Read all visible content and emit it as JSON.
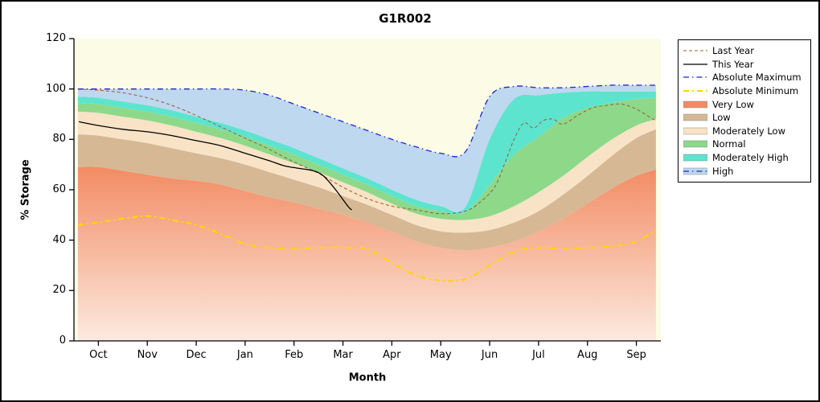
{
  "colors": {
    "plot_bg": "#FCFCE6",
    "axis": "#000000",
    "very_low_top": "#F28B63",
    "very_low_bottom": "#FCEADF",
    "low": "#D6B894",
    "moderately_low": "#F8E3C6",
    "normal": "#8ED88A",
    "moderately_high": "#5CE4CE",
    "high": "#BDD8EF",
    "last_year_line": "#9A5D2E",
    "this_year_line": "#000000",
    "abs_max_line": "#2222CC",
    "abs_min_line": "#FFD700"
  },
  "chart_data": {
    "type": "area+line",
    "title": "G1R002",
    "xlabel": "Month",
    "ylabel": "% Storage",
    "ylim": [
      0,
      120
    ],
    "y_ticks": [
      0,
      20,
      40,
      60,
      80,
      100,
      120
    ],
    "months": [
      "Oct",
      "Nov",
      "Dec",
      "Jan",
      "Feb",
      "Mar",
      "Apr",
      "May",
      "Jun",
      "Jul",
      "Aug",
      "Sep"
    ],
    "x_range_months": [
      0,
      12
    ],
    "grid": false,
    "legend_position": "right-outside",
    "x_grid": [
      0.08,
      0.5,
      1,
      1.5,
      2,
      2.5,
      3,
      3.5,
      4,
      4.5,
      5,
      5.5,
      6,
      6.5,
      7,
      7.5,
      8,
      8.5,
      9,
      9.5,
      10,
      10.5,
      11,
      11.5,
      11.9
    ],
    "bands": [
      {
        "name": "Very Low",
        "color": "#F28B63",
        "gradient": true,
        "values": [
          69,
          69,
          67.5,
          66,
          64.5,
          63.5,
          62,
          59.5,
          57,
          55,
          52.5,
          50,
          47,
          43.5,
          39.5,
          37,
          36,
          37,
          39.5,
          43.5,
          48.5,
          54.5,
          60.5,
          65.5,
          68
        ]
      },
      {
        "name": "Low",
        "color": "#D6B894",
        "gradient": false,
        "values": [
          82,
          81.5,
          80,
          78.5,
          76.5,
          74.5,
          72.5,
          70,
          67,
          64,
          61,
          57.5,
          54,
          50,
          46,
          43.5,
          43,
          44,
          47,
          51.5,
          58,
          65.5,
          73.5,
          80.5,
          84
        ]
      },
      {
        "name": "Moderately Low",
        "color": "#F8E3C6",
        "gradient": false,
        "values": [
          91,
          90.5,
          89,
          87.5,
          85.5,
          83,
          80.5,
          77.5,
          74,
          70.5,
          67,
          63,
          59,
          54.5,
          50.5,
          48.5,
          48,
          49.5,
          53.5,
          59,
          65.5,
          73,
          80,
          85.5,
          88
        ]
      },
      {
        "name": "Normal",
        "color": "#8ED88A",
        "gradient": false,
        "values": [
          94.5,
          94,
          92.5,
          91,
          89,
          86.5,
          84,
          81,
          77.5,
          74,
          70,
          66,
          62,
          57.5,
          53.5,
          51.5,
          51,
          62,
          74,
          81,
          88.5,
          92.5,
          94.5,
          96,
          96.5
        ]
      },
      {
        "name": "Moderately High",
        "color": "#5CE4CE",
        "gradient": false,
        "values": [
          97,
          96.5,
          95,
          93.5,
          91.5,
          89,
          86.5,
          83.5,
          80,
          76.5,
          72.5,
          68.5,
          64.5,
          60,
          56,
          53.5,
          53,
          80,
          96,
          97.5,
          98.5,
          99,
          99,
          99,
          99
        ]
      },
      {
        "name": "High",
        "color": "#BDD8EF",
        "gradient": false,
        "values": [
          100,
          100,
          100,
          100,
          100,
          100,
          100,
          99.5,
          97.5,
          94,
          90.5,
          87,
          83.5,
          80,
          77,
          74.5,
          75,
          97,
          101,
          100.5,
          100.5,
          101,
          101.5,
          101.5,
          101.5
        ]
      }
    ],
    "lines": [
      {
        "name": "Absolute Minimum",
        "color": "#FFD700",
        "width": 2.2,
        "dash": "7 4 2 4",
        "x": [
          0.08,
          0.5,
          1,
          1.5,
          2,
          2.5,
          3,
          3.5,
          4,
          4.5,
          5,
          5.5,
          6,
          6.5,
          7,
          7.5,
          8,
          8.5,
          9,
          9.5,
          10,
          10.5,
          11,
          11.5,
          11.9
        ],
        "v": [
          46,
          47,
          48.5,
          49.5,
          48,
          46,
          42.5,
          38.5,
          37,
          36.5,
          37,
          37,
          36.5,
          31,
          26,
          24,
          24.5,
          30,
          35.5,
          37,
          36.5,
          37,
          37.5,
          39.5,
          44
        ]
      },
      {
        "name": "Last Year",
        "color": "#9A5D2E",
        "width": 1,
        "dash": "4 3",
        "x": [
          0.08,
          0.5,
          1,
          1.5,
          2,
          2.5,
          3,
          3.5,
          4,
          4.5,
          5,
          5.5,
          6,
          6.5,
          7,
          7.5,
          8,
          8.3,
          8.6,
          8.8,
          9,
          9.2,
          9.4,
          9.6,
          9.8,
          10,
          10.3,
          10.6,
          10.9,
          11.2,
          11.5,
          11.8,
          11.9
        ],
        "v": [
          100,
          99.5,
          98.5,
          96.5,
          93.5,
          89.5,
          85,
          80.5,
          76,
          71,
          66.5,
          61,
          56.5,
          53.5,
          52,
          50.5,
          51.5,
          55,
          61,
          70,
          80,
          86.5,
          84.5,
          87.5,
          88,
          86,
          89.5,
          92.5,
          93.5,
          94,
          92,
          88.5,
          87.5
        ]
      },
      {
        "name": "This Year",
        "color": "#000000",
        "width": 1.3,
        "dash": "",
        "x": [
          0.1,
          0.5,
          1,
          1.5,
          2,
          2.5,
          3,
          3.5,
          4,
          4.3,
          4.6,
          4.9,
          5.1,
          5.35,
          5.6,
          5.68
        ],
        "v": [
          87,
          85.5,
          84,
          83,
          81.5,
          79.5,
          77.5,
          74.5,
          71.5,
          69.5,
          68.5,
          67.5,
          65.5,
          60,
          53.5,
          52
        ]
      },
      {
        "name": "Absolute Maximum",
        "color": "#2222CC",
        "width": 1.3,
        "dash": "7 4 1.5 4",
        "x": [
          0.08,
          0.5,
          1,
          1.5,
          2,
          2.5,
          3,
          3.5,
          4,
          4.5,
          5,
          5.5,
          6,
          6.5,
          7,
          7.5,
          8,
          8.5,
          9,
          9.5,
          10,
          10.5,
          11,
          11.5,
          11.9
        ],
        "v": [
          100,
          100,
          100,
          100,
          100,
          100,
          100,
          99.5,
          97.5,
          94,
          90.5,
          87,
          83.5,
          80,
          77,
          74.5,
          75,
          97,
          101,
          100.5,
          100.5,
          101,
          101.5,
          101.5,
          101.5
        ]
      }
    ]
  },
  "legend": {
    "items": [
      {
        "label": "Last Year",
        "sample": "line",
        "color": "#9A5D2E",
        "dash": "4 3",
        "width": 1
      },
      {
        "label": "This Year",
        "sample": "line",
        "color": "#000000",
        "dash": "",
        "width": 1.3
      },
      {
        "label": "Absolute Maximum",
        "sample": "line",
        "color": "#2222CC",
        "dash": "7 4 1.5 4",
        "width": 1.3
      },
      {
        "label": "Absolute Minimum",
        "sample": "line",
        "color": "#FFD700",
        "dash": "7 4 2 4",
        "width": 2.2
      },
      {
        "label": "Very Low",
        "sample": "fill",
        "color": "#F28B63"
      },
      {
        "label": "Low",
        "sample": "fill",
        "color": "#D6B894"
      },
      {
        "label": "Moderately Low",
        "sample": "fill",
        "color": "#F8E3C6"
      },
      {
        "label": "Normal",
        "sample": "fill",
        "color": "#8ED88A"
      },
      {
        "label": "Moderately High",
        "sample": "fill",
        "color": "#5CE4CE"
      },
      {
        "label": "High",
        "sample": "fill-line",
        "color": "#BDD8EF",
        "line_color": "#2222CC",
        "dash": "7 4 1.5 4",
        "width": 1.2
      }
    ]
  }
}
